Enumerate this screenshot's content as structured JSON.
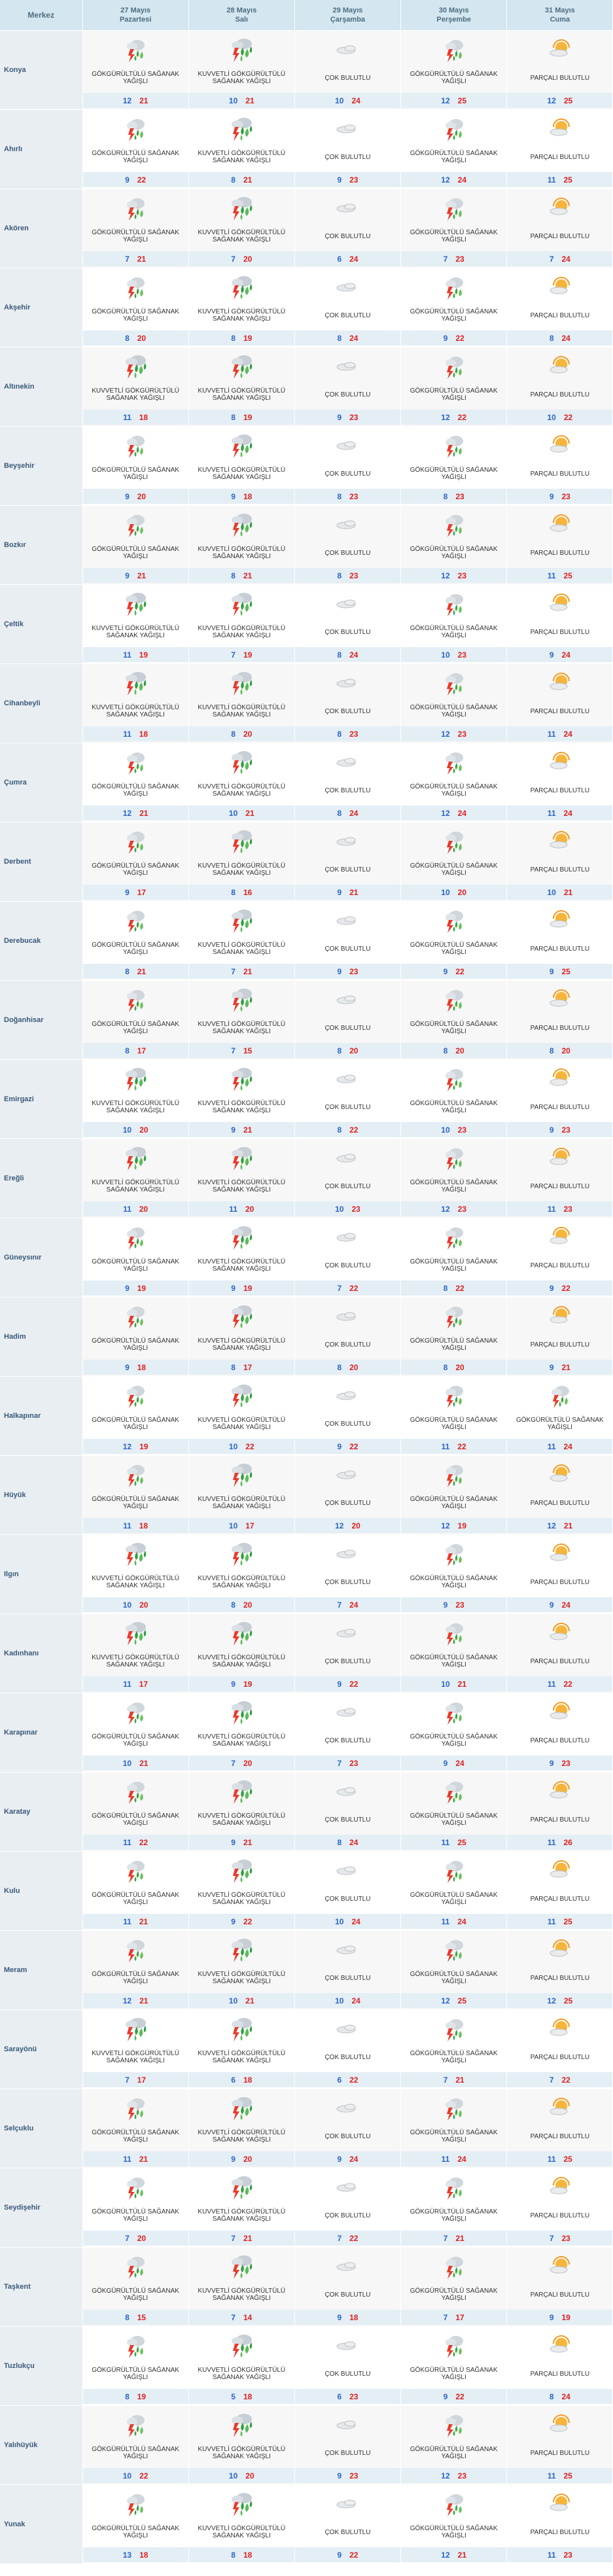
{
  "header": {
    "city_label": "Merkez",
    "days": [
      {
        "date": "27 Mayıs",
        "weekday": "Pazartesi"
      },
      {
        "date": "28 Mayıs",
        "weekday": "Salı"
      },
      {
        "date": "29 Mayıs",
        "weekday": "Çarşamba"
      },
      {
        "date": "30 Mayıs",
        "weekday": "Perşembe"
      },
      {
        "date": "31 Mayıs",
        "weekday": "Cuma"
      }
    ]
  },
  "conditions": {
    "G": {
      "text": "GÖKGÜRÜLTÜLÜ SAĞANAK YAĞIŞLI",
      "icon": "thunderstorm-rain-icon"
    },
    "K": {
      "text": "KUVVETLİ GÖKGÜRÜLTÜLÜ SAĞANAK YAĞIŞLI",
      "icon": "heavy-thunderstorm-rain-icon"
    },
    "C": {
      "text": "ÇOK BULUTLU",
      "icon": "cloud-icon"
    },
    "P": {
      "text": "PARÇALI BULUTLU",
      "icon": "partly-cloudy-icon"
    }
  },
  "rows": [
    {
      "city": "Konya",
      "days": [
        [
          "G",
          12,
          21
        ],
        [
          "K",
          10,
          21
        ],
        [
          "C",
          10,
          24
        ],
        [
          "G",
          12,
          25
        ],
        [
          "P",
          12,
          25
        ]
      ]
    },
    {
      "city": "Ahırlı",
      "days": [
        [
          "G",
          9,
          22
        ],
        [
          "K",
          8,
          21
        ],
        [
          "C",
          9,
          23
        ],
        [
          "G",
          12,
          24
        ],
        [
          "P",
          11,
          25
        ]
      ]
    },
    {
      "city": "Akören",
      "days": [
        [
          "G",
          7,
          21
        ],
        [
          "K",
          7,
          20
        ],
        [
          "C",
          6,
          24
        ],
        [
          "G",
          7,
          23
        ],
        [
          "P",
          7,
          24
        ]
      ]
    },
    {
      "city": "Akşehir",
      "days": [
        [
          "G",
          8,
          20
        ],
        [
          "K",
          8,
          19
        ],
        [
          "C",
          8,
          24
        ],
        [
          "G",
          9,
          22
        ],
        [
          "P",
          8,
          24
        ]
      ]
    },
    {
      "city": "Altınekin",
      "days": [
        [
          "K",
          11,
          18
        ],
        [
          "K",
          8,
          19
        ],
        [
          "C",
          9,
          23
        ],
        [
          "G",
          12,
          22
        ],
        [
          "P",
          10,
          22
        ]
      ]
    },
    {
      "city": "Beyşehir",
      "days": [
        [
          "G",
          9,
          20
        ],
        [
          "K",
          9,
          18
        ],
        [
          "C",
          8,
          23
        ],
        [
          "G",
          8,
          23
        ],
        [
          "P",
          9,
          23
        ]
      ]
    },
    {
      "city": "Bozkır",
      "days": [
        [
          "G",
          9,
          21
        ],
        [
          "K",
          8,
          21
        ],
        [
          "C",
          8,
          23
        ],
        [
          "G",
          12,
          23
        ],
        [
          "P",
          11,
          25
        ]
      ]
    },
    {
      "city": "Çeltik",
      "days": [
        [
          "K",
          11,
          19
        ],
        [
          "K",
          7,
          19
        ],
        [
          "C",
          8,
          24
        ],
        [
          "G",
          10,
          23
        ],
        [
          "P",
          9,
          24
        ]
      ]
    },
    {
      "city": "Cihanbeyli",
      "days": [
        [
          "K",
          11,
          18
        ],
        [
          "K",
          8,
          20
        ],
        [
          "C",
          8,
          23
        ],
        [
          "G",
          12,
          23
        ],
        [
          "P",
          11,
          24
        ]
      ]
    },
    {
      "city": "Çumra",
      "days": [
        [
          "G",
          12,
          21
        ],
        [
          "K",
          10,
          21
        ],
        [
          "C",
          8,
          24
        ],
        [
          "G",
          12,
          24
        ],
        [
          "P",
          11,
          24
        ]
      ]
    },
    {
      "city": "Derbent",
      "days": [
        [
          "G",
          9,
          17
        ],
        [
          "K",
          8,
          16
        ],
        [
          "C",
          9,
          21
        ],
        [
          "G",
          10,
          20
        ],
        [
          "P",
          10,
          21
        ]
      ]
    },
    {
      "city": "Derebucak",
      "days": [
        [
          "G",
          8,
          21
        ],
        [
          "K",
          7,
          21
        ],
        [
          "C",
          9,
          23
        ],
        [
          "G",
          9,
          22
        ],
        [
          "P",
          9,
          25
        ]
      ]
    },
    {
      "city": "Doğanhisar",
      "days": [
        [
          "G",
          8,
          17
        ],
        [
          "K",
          7,
          15
        ],
        [
          "C",
          8,
          20
        ],
        [
          "G",
          8,
          20
        ],
        [
          "P",
          8,
          20
        ]
      ]
    },
    {
      "city": "Emirgazi",
      "days": [
        [
          "K",
          10,
          20
        ],
        [
          "K",
          9,
          21
        ],
        [
          "C",
          8,
          22
        ],
        [
          "G",
          10,
          23
        ],
        [
          "P",
          9,
          23
        ]
      ]
    },
    {
      "city": "Ereğli",
      "days": [
        [
          "K",
          11,
          20
        ],
        [
          "K",
          11,
          20
        ],
        [
          "C",
          10,
          23
        ],
        [
          "G",
          12,
          23
        ],
        [
          "P",
          11,
          23
        ]
      ]
    },
    {
      "city": "Güneysınır",
      "days": [
        [
          "G",
          9,
          19
        ],
        [
          "K",
          9,
          19
        ],
        [
          "C",
          7,
          22
        ],
        [
          "G",
          8,
          22
        ],
        [
          "P",
          9,
          22
        ]
      ]
    },
    {
      "city": "Hadim",
      "days": [
        [
          "G",
          9,
          18
        ],
        [
          "K",
          8,
          17
        ],
        [
          "C",
          8,
          20
        ],
        [
          "G",
          8,
          20
        ],
        [
          "P",
          9,
          21
        ]
      ]
    },
    {
      "city": "Halkapınar",
      "days": [
        [
          "G",
          12,
          19
        ],
        [
          "K",
          10,
          22
        ],
        [
          "C",
          9,
          22
        ],
        [
          "G",
          11,
          22
        ],
        [
          "G",
          11,
          24
        ]
      ]
    },
    {
      "city": "Hüyük",
      "days": [
        [
          "G",
          11,
          18
        ],
        [
          "K",
          10,
          17
        ],
        [
          "C",
          12,
          20
        ],
        [
          "G",
          12,
          19
        ],
        [
          "P",
          12,
          21
        ]
      ]
    },
    {
      "city": "Ilgın",
      "days": [
        [
          "K",
          10,
          20
        ],
        [
          "K",
          8,
          20
        ],
        [
          "C",
          7,
          24
        ],
        [
          "G",
          9,
          23
        ],
        [
          "P",
          9,
          24
        ]
      ]
    },
    {
      "city": "Kadınhanı",
      "days": [
        [
          "K",
          11,
          17
        ],
        [
          "K",
          9,
          19
        ],
        [
          "C",
          9,
          22
        ],
        [
          "G",
          10,
          21
        ],
        [
          "P",
          11,
          22
        ]
      ]
    },
    {
      "city": "Karapınar",
      "days": [
        [
          "G",
          10,
          21
        ],
        [
          "K",
          7,
          20
        ],
        [
          "C",
          7,
          23
        ],
        [
          "G",
          9,
          24
        ],
        [
          "P",
          9,
          23
        ]
      ]
    },
    {
      "city": "Karatay",
      "days": [
        [
          "G",
          11,
          22
        ],
        [
          "K",
          9,
          21
        ],
        [
          "C",
          8,
          24
        ],
        [
          "G",
          11,
          25
        ],
        [
          "P",
          11,
          26
        ]
      ]
    },
    {
      "city": "Kulu",
      "days": [
        [
          "G",
          11,
          21
        ],
        [
          "K",
          9,
          22
        ],
        [
          "C",
          10,
          24
        ],
        [
          "G",
          11,
          24
        ],
        [
          "P",
          11,
          25
        ]
      ]
    },
    {
      "city": "Meram",
      "days": [
        [
          "G",
          12,
          21
        ],
        [
          "K",
          10,
          21
        ],
        [
          "C",
          10,
          24
        ],
        [
          "G",
          12,
          25
        ],
        [
          "P",
          12,
          25
        ]
      ]
    },
    {
      "city": "Sarayönü",
      "days": [
        [
          "K",
          7,
          17
        ],
        [
          "K",
          6,
          18
        ],
        [
          "C",
          6,
          22
        ],
        [
          "G",
          7,
          21
        ],
        [
          "P",
          7,
          22
        ]
      ]
    },
    {
      "city": "Selçuklu",
      "days": [
        [
          "G",
          11,
          21
        ],
        [
          "K",
          9,
          20
        ],
        [
          "C",
          9,
          24
        ],
        [
          "G",
          11,
          24
        ],
        [
          "P",
          11,
          25
        ]
      ]
    },
    {
      "city": "Seydişehir",
      "days": [
        [
          "G",
          7,
          20
        ],
        [
          "K",
          7,
          21
        ],
        [
          "C",
          7,
          22
        ],
        [
          "G",
          7,
          21
        ],
        [
          "P",
          7,
          23
        ]
      ]
    },
    {
      "city": "Taşkent",
      "days": [
        [
          "G",
          8,
          15
        ],
        [
          "K",
          7,
          14
        ],
        [
          "C",
          9,
          18
        ],
        [
          "G",
          7,
          17
        ],
        [
          "P",
          9,
          19
        ]
      ]
    },
    {
      "city": "Tuzlukçu",
      "days": [
        [
          "G",
          8,
          19
        ],
        [
          "K",
          5,
          18
        ],
        [
          "C",
          6,
          23
        ],
        [
          "G",
          9,
          22
        ],
        [
          "P",
          8,
          24
        ]
      ]
    },
    {
      "city": "Yalıhüyük",
      "days": [
        [
          "G",
          10,
          22
        ],
        [
          "K",
          10,
          20
        ],
        [
          "C",
          9,
          23
        ],
        [
          "G",
          12,
          23
        ],
        [
          "P",
          11,
          25
        ]
      ]
    },
    {
      "city": "Yunak",
      "days": [
        [
          "G",
          13,
          18
        ],
        [
          "K",
          8,
          18
        ],
        [
          "C",
          9,
          22
        ],
        [
          "G",
          12,
          21
        ],
        [
          "P",
          11,
          23
        ]
      ]
    }
  ]
}
